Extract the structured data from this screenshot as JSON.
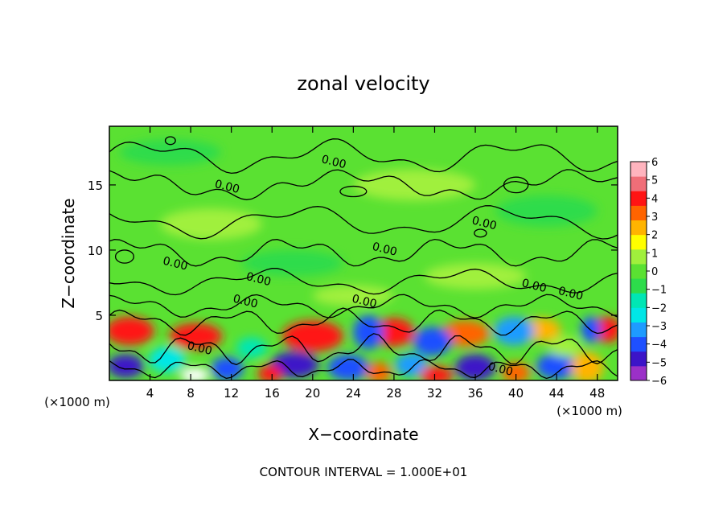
{
  "chart_data": {
    "type": "heatmap",
    "title": "zonal velocity",
    "xlabel": "X−coordinate",
    "ylabel": "Z−coordinate",
    "x_unit_left": "(×1000 m)",
    "x_unit_right": "(×1000 m)",
    "footer": "CONTOUR INTERVAL = 1.000E+01",
    "xlim": [
      0,
      50
    ],
    "ylim": [
      0,
      19.5
    ],
    "x_ticks": [
      4,
      8,
      12,
      16,
      20,
      24,
      28,
      32,
      36,
      40,
      44,
      48
    ],
    "x_tick_labels": [
      "4",
      "8",
      "12",
      "16",
      "20",
      "24",
      "28",
      "32",
      "36",
      "40",
      "44",
      "48"
    ],
    "y_ticks": [
      5,
      10,
      15
    ],
    "y_tick_labels": [
      "5",
      "10",
      "15"
    ],
    "colorbar": {
      "min": -6,
      "max": 6,
      "tick_labels": [
        "6",
        "5",
        "4",
        "3",
        "2",
        "1",
        "0",
        "−1",
        "−2",
        "−3",
        "−4",
        "−5",
        "−6"
      ],
      "colors": [
        "#9b30c8",
        "#3c14c8",
        "#1e50ff",
        "#1e9bff",
        "#00e6e6",
        "#00e6b4",
        "#2ddc4b",
        "#5ae132",
        "#a0f03c",
        "#ffff00",
        "#ffb400",
        "#ff6400",
        "#ff1414",
        "#f06e78",
        "#ffb4be"
      ]
    },
    "contour_labels": [
      {
        "text": "0.00",
        "x": 22.0,
        "z": 16.5
      },
      {
        "text": "0.00",
        "x": 11.5,
        "z": 14.6
      },
      {
        "text": "0.00",
        "x": 36.8,
        "z": 11.8
      },
      {
        "text": "0.00",
        "x": 27.0,
        "z": 9.8
      },
      {
        "text": "0.00",
        "x": 6.4,
        "z": 8.7
      },
      {
        "text": "0.00",
        "x": 14.6,
        "z": 7.5
      },
      {
        "text": "0.00",
        "x": 41.7,
        "z": 7.0
      },
      {
        "text": "0.00",
        "x": 45.3,
        "z": 6.4
      },
      {
        "text": "0.00",
        "x": 13.3,
        "z": 5.8
      },
      {
        "text": "0.00",
        "x": 25.0,
        "z": 5.8
      },
      {
        "text": "0.00",
        "x": 8.8,
        "z": 2.2
      },
      {
        "text": "0.00",
        "x": 38.4,
        "z": 0.6
      }
    ]
  }
}
